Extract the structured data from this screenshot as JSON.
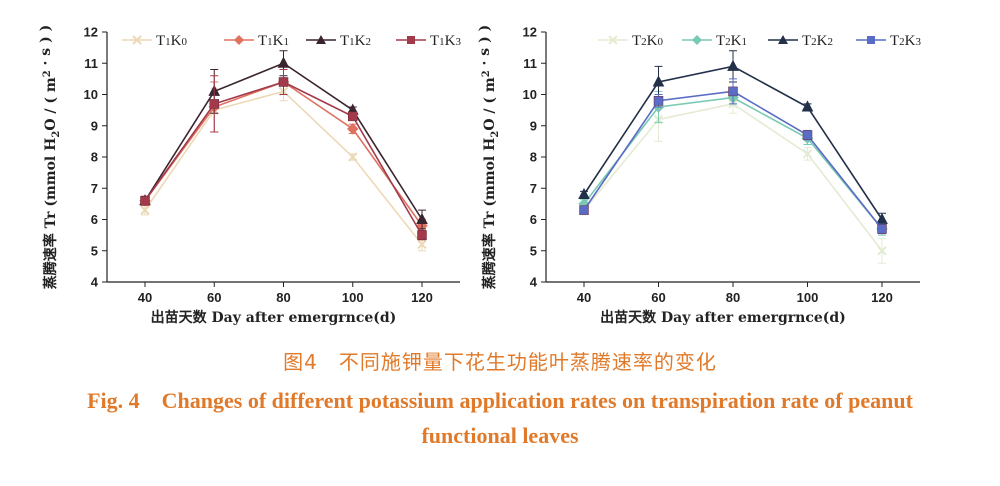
{
  "figure": {
    "caption_cn": "图4　不同施钾量下花生功能叶蒸腾速率的变化",
    "caption_en_line1": "Fig. 4　Changes of different potassium application rates on transpiration rate of peanut",
    "caption_en_line2": "functional leaves"
  },
  "chart_data": [
    {
      "type": "line",
      "xlabel": "出苗天数 Day after emergrnce(d)",
      "ylabel": "蒸腾速率 Tr (mmol H2O / ( m2 · s ) )",
      "x": [
        40,
        60,
        80,
        100,
        120
      ],
      "ylim": [
        4,
        12
      ],
      "yticks": [
        4,
        5,
        6,
        7,
        8,
        9,
        10,
        11,
        12
      ],
      "legend_position": "top",
      "series": [
        {
          "name": "T1K0",
          "marker": "x",
          "color": "#ecd9b8",
          "values": [
            6.3,
            9.5,
            10.1,
            8.0,
            5.2
          ],
          "errors": [
            0.15,
            0.7,
            0.3,
            0.1,
            0.2
          ]
        },
        {
          "name": "T1K1",
          "marker": "diamond",
          "color": "#e0705f",
          "values": [
            6.6,
            9.6,
            10.4,
            8.9,
            5.8
          ],
          "errors": [
            0.15,
            0.8,
            0.4,
            0.15,
            0.2
          ]
        },
        {
          "name": "T1K2",
          "marker": "triangle",
          "color": "#3a2430",
          "values": [
            6.6,
            10.1,
            11.0,
            9.5,
            6.0
          ],
          "errors": [
            0.1,
            0.7,
            0.4,
            0.1,
            0.3
          ]
        },
        {
          "name": "T1K3",
          "marker": "square",
          "color": "#a23a4b",
          "values": [
            6.6,
            9.7,
            10.4,
            9.3,
            5.5
          ],
          "errors": [
            0.1,
            0.9,
            0.4,
            0.1,
            0.15
          ]
        }
      ]
    },
    {
      "type": "line",
      "xlabel": "出苗天数 Day after emergrnce(d)",
      "ylabel": "蒸腾速率 Tr (mmol H2O / ( m2 · s ) )",
      "x": [
        40,
        60,
        80,
        100,
        120
      ],
      "ylim": [
        4,
        12
      ],
      "yticks": [
        4,
        5,
        6,
        7,
        8,
        9,
        10,
        11,
        12
      ],
      "legend_position": "top",
      "series": [
        {
          "name": "T2K0",
          "marker": "x",
          "color": "#e3ecd2",
          "values": [
            6.3,
            9.2,
            9.7,
            8.1,
            5.0
          ],
          "errors": [
            0.15,
            0.7,
            0.3,
            0.2,
            0.4
          ]
        },
        {
          "name": "T2K1",
          "marker": "diamond",
          "color": "#7ac9b3",
          "values": [
            6.5,
            9.6,
            9.9,
            8.6,
            5.7
          ],
          "errors": [
            0.15,
            0.5,
            0.2,
            0.2,
            0.2
          ]
        },
        {
          "name": "T2K2",
          "marker": "triangle",
          "color": "#23304a",
          "values": [
            6.8,
            10.4,
            10.9,
            9.6,
            6.0
          ],
          "errors": [
            0.1,
            0.5,
            0.5,
            0.1,
            0.2
          ]
        },
        {
          "name": "T2K3",
          "marker": "square",
          "color": "#5a6cc6",
          "values": [
            6.3,
            9.8,
            10.1,
            8.7,
            5.7
          ],
          "errors": [
            0.1,
            0.2,
            0.4,
            0.15,
            0.15
          ]
        }
      ]
    }
  ]
}
